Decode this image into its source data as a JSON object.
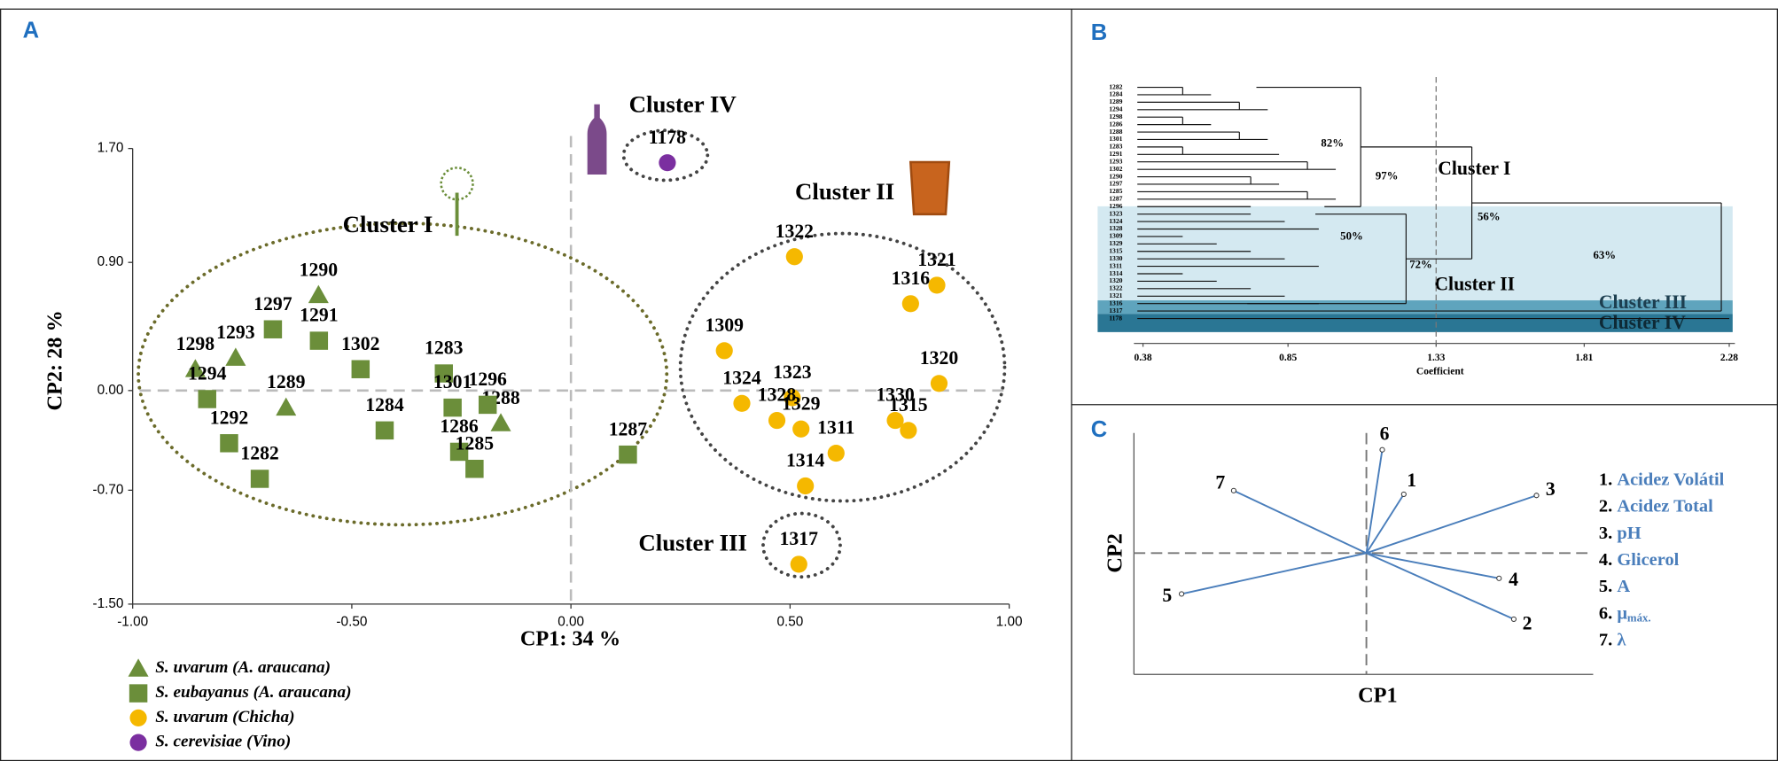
{
  "chart_data": [
    {
      "type": "scatter",
      "panel": "A",
      "xlabel": "CP1: 34 %",
      "ylabel": "CP2: 28 %",
      "xlim": [
        -1,
        1
      ],
      "ylim": [
        -1.5,
        1.7
      ],
      "xticks": [
        {
          "value": -1,
          "label": "-1.00"
        },
        {
          "value": -0.5,
          "label": "-0.50"
        },
        {
          "value": 0,
          "label": "0.00"
        },
        {
          "value": 0.5,
          "label": "0.50"
        },
        {
          "value": 1,
          "label": "1.00"
        }
      ],
      "yticks": [
        {
          "value": 1.7,
          "label": "1.70"
        },
        {
          "value": 0.9,
          "label": "0.90"
        },
        {
          "value": 0,
          "label": "0.00"
        },
        {
          "value": -0.7,
          "label": "-0.70"
        },
        {
          "value": -1.5,
          "label": "-1.50"
        }
      ],
      "annotations": [
        "Cluster I",
        "Cluster II",
        "Cluster III",
        "Cluster IV"
      ],
      "series": [
        {
          "name": "S. uvarum (A. araucana)",
          "marker": "triangle",
          "color": "#6b8e3a",
          "labels": [
            "1298",
            "1293",
            "1290",
            "1289",
            "1288"
          ],
          "x": [
            -0.857,
            -0.765,
            -0.576,
            -0.65,
            -0.16
          ],
          "values": [
            0.15,
            0.23,
            0.67,
            -0.12,
            -0.23
          ]
        },
        {
          "name": "S. eubayanus (A. araucana)",
          "marker": "square",
          "color": "#6b8e3a",
          "labels": [
            "1297",
            "1291",
            "1302",
            "1283",
            "1294",
            "1292",
            "1282",
            "1284",
            "1301",
            "1296",
            "1286",
            "1285",
            "1287"
          ],
          "x": [
            -0.68,
            -0.575,
            -0.48,
            -0.29,
            -0.83,
            -0.78,
            -0.71,
            -0.425,
            -0.27,
            -0.19,
            -0.255,
            -0.22,
            0.13
          ],
          "values": [
            0.43,
            0.35,
            0.15,
            0.12,
            -0.06,
            -0.37,
            -0.62,
            -0.28,
            -0.12,
            -0.1,
            -0.43,
            -0.55,
            -0.45
          ]
        },
        {
          "name": "S. uvarum (Chicha)",
          "marker": "circle",
          "color": "#f5b800",
          "labels": [
            "1322",
            "1321",
            "1316",
            "1309",
            "1320",
            "1323",
            "1324",
            "1328",
            "1329",
            "1330",
            "1315",
            "1311",
            "1314",
            "1317"
          ],
          "x": [
            0.51,
            0.835,
            0.775,
            0.35,
            0.84,
            0.505,
            0.39,
            0.47,
            0.525,
            0.74,
            0.77,
            0.605,
            0.535,
            0.52
          ],
          "values": [
            0.94,
            0.74,
            0.61,
            0.28,
            0.05,
            -0.05,
            -0.09,
            -0.21,
            -0.27,
            -0.21,
            -0.28,
            -0.44,
            -0.67,
            -1.22
          ]
        },
        {
          "name": "S. cerevisiae (Vino)",
          "marker": "circle",
          "color": "#7b2fa0",
          "labels": [
            "1178"
          ],
          "x": [
            0.22
          ],
          "values": [
            1.6
          ]
        }
      ]
    },
    {
      "type": "dendrogram",
      "panel": "B",
      "xlabel": "Coefficient",
      "xlim": [
        0.38,
        2.28
      ],
      "xticks": [
        0.38,
        0.85,
        1.33,
        1.81,
        2.28
      ],
      "cutoff": 1.33,
      "leaves": [
        "1282",
        "1284",
        "1289",
        "1294",
        "1298",
        "1286",
        "1288",
        "1301",
        "1283",
        "1291",
        "1293",
        "1302",
        "1290",
        "1297",
        "1285",
        "1287",
        "1296",
        "1323",
        "1324",
        "1328",
        "1309",
        "1329",
        "1315",
        "1330",
        "1311",
        "1314",
        "1320",
        "1322",
        "1321",
        "1316",
        "1317",
        "1178"
      ],
      "node_labels": [
        "82%",
        "97%",
        "56%",
        "50%",
        "72%",
        "63%"
      ],
      "clusters": [
        "Cluster I",
        "Cluster II",
        "Cluster III",
        "Cluster IV"
      ]
    },
    {
      "type": "biplot",
      "panel": "C",
      "xlabel": "CP1",
      "ylabel": "CP2",
      "xlim": [
        -1,
        1
      ],
      "ylim": [
        -1,
        1
      ],
      "vectors": {
        "labels": [
          "1",
          "2",
          "3",
          "4",
          "5",
          "6",
          "7"
        ],
        "x": [
          0.165,
          0.65,
          0.75,
          0.585,
          -0.815,
          0.07,
          -0.585
        ],
        "y": [
          0.49,
          -0.55,
          0.48,
          -0.21,
          -0.34,
          0.86,
          0.52
        ]
      },
      "legend": [
        {
          "number": "1.",
          "label": "Acidez Volátil"
        },
        {
          "number": "2.",
          "label": "Acidez Total"
        },
        {
          "number": "3.",
          "label": "pH"
        },
        {
          "number": "4.",
          "label": "Glicerol"
        },
        {
          "number": "5.",
          "label": "A"
        },
        {
          "number": "6.",
          "label": "μ",
          "sub": "máx."
        },
        {
          "number": "7.",
          "label": "λ"
        }
      ]
    }
  ]
}
